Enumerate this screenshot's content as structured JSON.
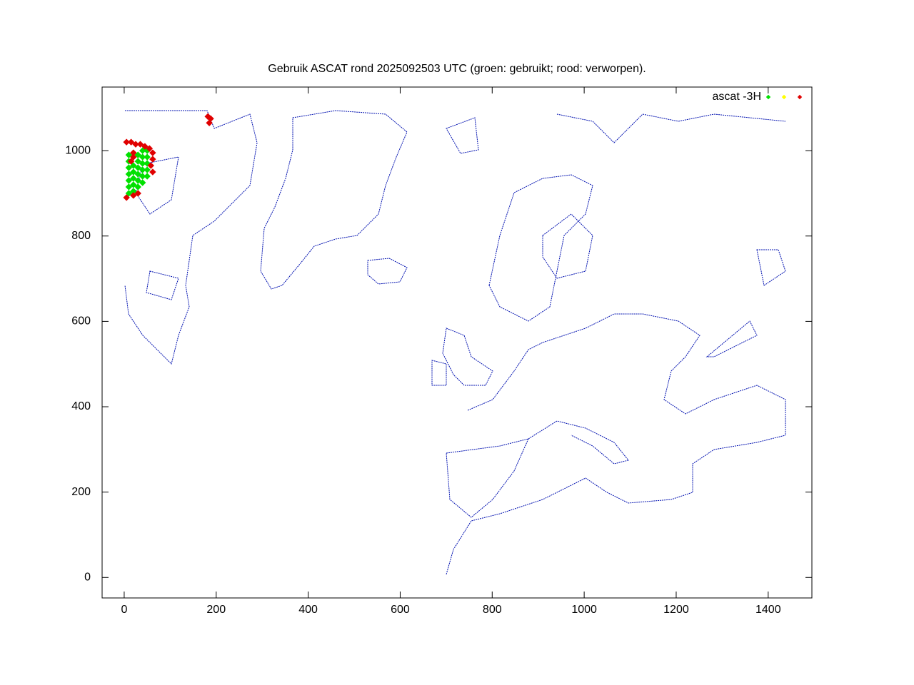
{
  "chart_data": {
    "type": "scatter",
    "title": "Gebruik ASCAT rond 2025092503 UTC (groen: gebruikt; rood: verworpen).",
    "xlim": [
      -48,
      1495
    ],
    "ylim": [
      -48,
      1149
    ],
    "xticks": [
      0,
      200,
      400,
      600,
      800,
      1000,
      1200,
      1400
    ],
    "yticks": [
      0,
      200,
      400,
      600,
      800,
      1000
    ],
    "grid": false,
    "legend": "top-right",
    "series": [
      {
        "name": "ascat -3H",
        "color": "#00e000",
        "x": [
          10,
          10,
          10,
          10,
          10,
          10,
          10,
          20,
          20,
          20,
          20,
          20,
          30,
          30,
          30,
          30,
          30,
          30,
          40,
          40,
          40,
          40,
          40,
          40,
          50,
          50,
          50,
          50,
          50
        ],
        "y": [
          900,
          915,
          930,
          945,
          960,
          975,
          990,
          905,
          920,
          935,
          950,
          965,
          915,
          930,
          945,
          960,
          975,
          990,
          925,
          940,
          955,
          970,
          985,
          1000,
          940,
          955,
          970,
          985,
          1000
        ]
      },
      {
        "color": "#ffff00",
        "x": [],
        "y": []
      },
      {
        "color": "#e00000",
        "x": [
          5,
          15,
          25,
          35,
          45,
          55,
          62,
          62,
          58,
          62,
          20,
          20,
          15,
          5,
          20,
          30,
          185,
          188,
          182
        ],
        "y": [
          1020,
          1020,
          1015,
          1015,
          1010,
          1005,
          995,
          980,
          965,
          950,
          995,
          985,
          975,
          890,
          895,
          900,
          1065,
          1075,
          1080
        ]
      }
    ]
  }
}
